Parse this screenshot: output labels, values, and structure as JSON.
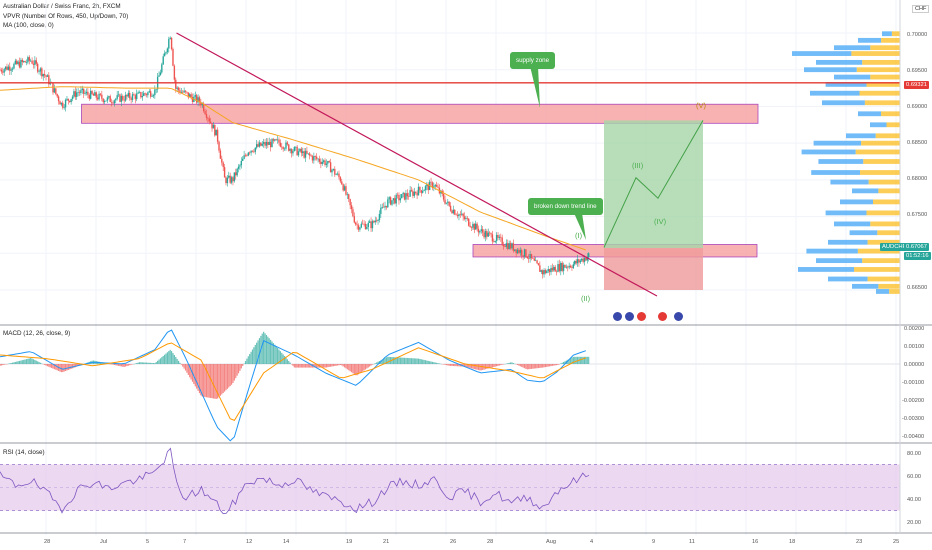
{
  "header": {
    "symbol_line": "Australian Dollar / Swiss Franc, 2h, FXCM",
    "vpvr_line": "VPVR (Number Of Rows, 450, Up/Down, 70)",
    "ma_line": "MA (100, close, 0)",
    "currency_badge": "CHF"
  },
  "price_axis": {
    "ticks": [
      "0.70000",
      "0.69500",
      "0.69000",
      "0.68500",
      "0.68000",
      "0.67500",
      "0.66500"
    ],
    "current_red_label": "0.69321",
    "symbol_tag": "AUDCHF",
    "current_price": "0.67067",
    "countdown": "01:52:16"
  },
  "annotations": {
    "supply_zone": "supply zone",
    "broken_trend": "broken down trend line",
    "waves": [
      "(I)",
      "(II)",
      "(III)",
      "(IV)",
      "(V)"
    ]
  },
  "macd": {
    "label": "MACD (12, 26, close, 9)",
    "ticks": [
      "0.00200",
      "0.00100",
      "0.00000",
      "-0.00100",
      "-0.00200",
      "-0.00300",
      "-0.00400"
    ]
  },
  "rsi": {
    "label": "RSI (14, close)",
    "ticks": [
      "80.00",
      "60.00",
      "40.00",
      "20.00"
    ]
  },
  "x_axis": {
    "ticks": [
      "28",
      "Jul",
      "5",
      "7",
      "12",
      "14",
      "19",
      "21",
      "26",
      "28",
      "Aug",
      "4",
      "9",
      "11",
      "16",
      "18",
      "23",
      "25"
    ]
  },
  "colors": {
    "bull": "#26a69a",
    "bear": "#ef5350",
    "ma": "#f5a623",
    "trendline": "#c2185b",
    "zone_fill": "#f8a5a5",
    "zone_border": "#9c27b0",
    "target_fill": "#a5d6a7",
    "stop_fill": "#ef9a9a",
    "vp_up": "#42a5f5",
    "vp_down": "#fbc02d",
    "macd_line": "#2196f3",
    "signal_line": "#ff9800",
    "rsi_line": "#7e57c2",
    "rsi_band": "#e1bee7"
  },
  "chart_data": [
    {
      "type": "candlestick",
      "title": "Australian Dollar / Swiss Franc, 2h, FXCM",
      "ylim": [
        0.6645,
        0.7005
      ],
      "x_range": [
        "Jun 26",
        "Aug 27"
      ],
      "anchors": [
        {
          "d": 0,
          "p": 0.695
        },
        {
          "d": 2,
          "p": 0.6963
        },
        {
          "d": 3,
          "p": 0.694
        },
        {
          "d": 4,
          "p": 0.6902
        },
        {
          "d": 5,
          "p": 0.692
        },
        {
          "d": 7,
          "p": 0.6909
        },
        {
          "d": 8,
          "p": 0.6912
        },
        {
          "d": 9,
          "p": 0.6915
        },
        {
          "d": 10,
          "p": 0.6921
        },
        {
          "d": 11,
          "p": 0.7
        },
        {
          "d": 11.3,
          "p": 0.6925
        },
        {
          "d": 13,
          "p": 0.6905
        },
        {
          "d": 14,
          "p": 0.686
        },
        {
          "d": 14.5,
          "p": 0.68
        },
        {
          "d": 15,
          "p": 0.68
        },
        {
          "d": 16,
          "p": 0.684
        },
        {
          "d": 17,
          "p": 0.6848
        },
        {
          "d": 18,
          "p": 0.6851
        },
        {
          "d": 19,
          "p": 0.684
        },
        {
          "d": 21,
          "p": 0.6824
        },
        {
          "d": 22,
          "p": 0.68
        },
        {
          "d": 23,
          "p": 0.6738
        },
        {
          "d": 24,
          "p": 0.6739
        },
        {
          "d": 25,
          "p": 0.677
        },
        {
          "d": 26,
          "p": 0.6777
        },
        {
          "d": 28,
          "p": 0.6794
        },
        {
          "d": 29,
          "p": 0.6763
        },
        {
          "d": 31,
          "p": 0.673
        },
        {
          "d": 33,
          "p": 0.6709
        },
        {
          "d": 34,
          "p": 0.6698
        },
        {
          "d": 35,
          "p": 0.6674
        },
        {
          "d": 36,
          "p": 0.6681
        },
        {
          "d": 37,
          "p": 0.6685
        },
        {
          "d": 38,
          "p": 0.6697
        }
      ],
      "ma_anchors": [
        {
          "d": 0,
          "p": 0.6922
        },
        {
          "d": 4,
          "p": 0.6927
        },
        {
          "d": 8,
          "p": 0.6925
        },
        {
          "d": 11,
          "p": 0.6925
        },
        {
          "d": 13,
          "p": 0.6905
        },
        {
          "d": 15,
          "p": 0.6878
        },
        {
          "d": 19,
          "p": 0.6854
        },
        {
          "d": 23,
          "p": 0.6828
        },
        {
          "d": 27,
          "p": 0.68
        },
        {
          "d": 31,
          "p": 0.6756
        },
        {
          "d": 35,
          "p": 0.6725
        },
        {
          "d": 38,
          "p": 0.6703
        }
      ],
      "trendline": [
        {
          "d": 11,
          "p": 0.7
        },
        {
          "d": 41,
          "p": 0.6655
        }
      ],
      "supply_zone": {
        "from_d": 3,
        "to_d": 46,
        "p_low": 0.6877,
        "p_high": 0.6903
      },
      "demand_zone": {
        "from_d": 30,
        "to_d": 46,
        "p_low": 0.6695,
        "p_high": 0.6712
      },
      "horizontal_line": 0.69321,
      "long_position": {
        "from_d": 38,
        "to_d": 44,
        "entry": 0.6707,
        "target": 0.6881,
        "stop": 0.665
      },
      "wave_path": [
        {
          "d": 38,
          "p": 0.6708
        },
        {
          "d": 40,
          "p": 0.6803
        },
        {
          "d": 41,
          "p": 0.6775
        },
        {
          "d": 44,
          "p": 0.6881
        }
      ],
      "volume_profile": [
        {
          "p": 0.6999,
          "v": 0.15
        },
        {
          "p": 0.699,
          "v": 0.35
        },
        {
          "p": 0.698,
          "v": 0.55
        },
        {
          "p": 0.6972,
          "v": 0.9
        },
        {
          "p": 0.696,
          "v": 0.7
        },
        {
          "p": 0.695,
          "v": 0.8
        },
        {
          "p": 0.694,
          "v": 0.55
        },
        {
          "p": 0.693,
          "v": 0.62
        },
        {
          "p": 0.6918,
          "v": 0.75
        },
        {
          "p": 0.6905,
          "v": 0.65
        },
        {
          "p": 0.689,
          "v": 0.35
        },
        {
          "p": 0.6875,
          "v": 0.25
        },
        {
          "p": 0.686,
          "v": 0.45
        },
        {
          "p": 0.685,
          "v": 0.72
        },
        {
          "p": 0.6838,
          "v": 0.82
        },
        {
          "p": 0.6825,
          "v": 0.68
        },
        {
          "p": 0.681,
          "v": 0.74
        },
        {
          "p": 0.6797,
          "v": 0.58
        },
        {
          "p": 0.6785,
          "v": 0.4
        },
        {
          "p": 0.677,
          "v": 0.5
        },
        {
          "p": 0.6755,
          "v": 0.62
        },
        {
          "p": 0.674,
          "v": 0.55
        },
        {
          "p": 0.6728,
          "v": 0.42
        },
        {
          "p": 0.6715,
          "v": 0.6
        },
        {
          "p": 0.6703,
          "v": 0.78
        },
        {
          "p": 0.669,
          "v": 0.7
        },
        {
          "p": 0.6678,
          "v": 0.85
        },
        {
          "p": 0.6665,
          "v": 0.6
        },
        {
          "p": 0.6655,
          "v": 0.4
        },
        {
          "p": 0.6648,
          "v": 0.2
        }
      ]
    },
    {
      "type": "line",
      "title": "MACD (12, 26, close, 9)",
      "ylim": [
        -0.0045,
        0.0023
      ],
      "x_range": [
        "Jun 26",
        "Aug 27"
      ],
      "macd_anchors": [
        {
          "d": 0,
          "v": 0.0004
        },
        {
          "d": 2,
          "v": 0.0007
        },
        {
          "d": 4,
          "v": -0.0003
        },
        {
          "d": 6,
          "v": 0.0001
        },
        {
          "d": 8,
          "v": 0.0
        },
        {
          "d": 10,
          "v": 0.0008
        },
        {
          "d": 11,
          "v": 0.002
        },
        {
          "d": 12,
          "v": 0.0003
        },
        {
          "d": 14,
          "v": -0.0035
        },
        {
          "d": 15,
          "v": -0.0044
        },
        {
          "d": 16,
          "v": -0.0015
        },
        {
          "d": 17,
          "v": 0.0013
        },
        {
          "d": 19,
          "v": 0.0005
        },
        {
          "d": 21,
          "v": -0.0005
        },
        {
          "d": 23,
          "v": -0.0012
        },
        {
          "d": 25,
          "v": 0.0005
        },
        {
          "d": 27,
          "v": 0.0012
        },
        {
          "d": 29,
          "v": 0.0002
        },
        {
          "d": 31,
          "v": -0.0005
        },
        {
          "d": 33,
          "v": -0.0003
        },
        {
          "d": 34,
          "v": -0.0009
        },
        {
          "d": 35,
          "v": -0.001
        },
        {
          "d": 36,
          "v": -0.0004
        },
        {
          "d": 37,
          "v": 0.0005
        },
        {
          "d": 38,
          "v": 0.0008
        }
      ],
      "signal_anchors": [
        {
          "d": 0,
          "v": 0.0005
        },
        {
          "d": 3,
          "v": 0.0003
        },
        {
          "d": 6,
          "v": -0.0001
        },
        {
          "d": 9,
          "v": 0.0003
        },
        {
          "d": 11,
          "v": 0.0012
        },
        {
          "d": 13,
          "v": 0.0002
        },
        {
          "d": 15,
          "v": -0.0033
        },
        {
          "d": 17,
          "v": -0.0005
        },
        {
          "d": 19,
          "v": 0.0007
        },
        {
          "d": 22,
          "v": -0.0008
        },
        {
          "d": 24,
          "v": -0.0003
        },
        {
          "d": 27,
          "v": 0.0009
        },
        {
          "d": 30,
          "v": 0.0
        },
        {
          "d": 33,
          "v": -0.0004
        },
        {
          "d": 35,
          "v": -0.0008
        },
        {
          "d": 37,
          "v": 0.0001
        },
        {
          "d": 38,
          "v": 0.0004
        }
      ]
    },
    {
      "type": "line",
      "title": "RSI (14, close)",
      "ylim": [
        15,
        85
      ],
      "band": [
        30,
        70
      ],
      "x_range": [
        "Jun 26",
        "Aug 27"
      ],
      "rsi_anchors": [
        {
          "d": 0,
          "v": 60
        },
        {
          "d": 1,
          "v": 52
        },
        {
          "d": 2,
          "v": 56
        },
        {
          "d": 3,
          "v": 45
        },
        {
          "d": 4,
          "v": 32
        },
        {
          "d": 5,
          "v": 48
        },
        {
          "d": 6,
          "v": 55
        },
        {
          "d": 7,
          "v": 49
        },
        {
          "d": 8,
          "v": 54
        },
        {
          "d": 9,
          "v": 57
        },
        {
          "d": 10,
          "v": 63
        },
        {
          "d": 11,
          "v": 83
        },
        {
          "d": 11.5,
          "v": 45
        },
        {
          "d": 12,
          "v": 42
        },
        {
          "d": 13,
          "v": 48
        },
        {
          "d": 14,
          "v": 35
        },
        {
          "d": 14.6,
          "v": 27
        },
        {
          "d": 15,
          "v": 35
        },
        {
          "d": 16,
          "v": 55
        },
        {
          "d": 17,
          "v": 58
        },
        {
          "d": 18,
          "v": 52
        },
        {
          "d": 19,
          "v": 57
        },
        {
          "d": 20,
          "v": 48
        },
        {
          "d": 21,
          "v": 42
        },
        {
          "d": 22,
          "v": 38
        },
        {
          "d": 23,
          "v": 32
        },
        {
          "d": 24,
          "v": 37
        },
        {
          "d": 25,
          "v": 50
        },
        {
          "d": 26,
          "v": 55
        },
        {
          "d": 27,
          "v": 52
        },
        {
          "d": 28,
          "v": 57
        },
        {
          "d": 29,
          "v": 42
        },
        {
          "d": 30,
          "v": 47
        },
        {
          "d": 31,
          "v": 38
        },
        {
          "d": 32,
          "v": 45
        },
        {
          "d": 33,
          "v": 36
        },
        {
          "d": 34,
          "v": 42
        },
        {
          "d": 35,
          "v": 32
        },
        {
          "d": 36,
          "v": 48
        },
        {
          "d": 37,
          "v": 55
        },
        {
          "d": 38,
          "v": 62
        }
      ]
    }
  ]
}
